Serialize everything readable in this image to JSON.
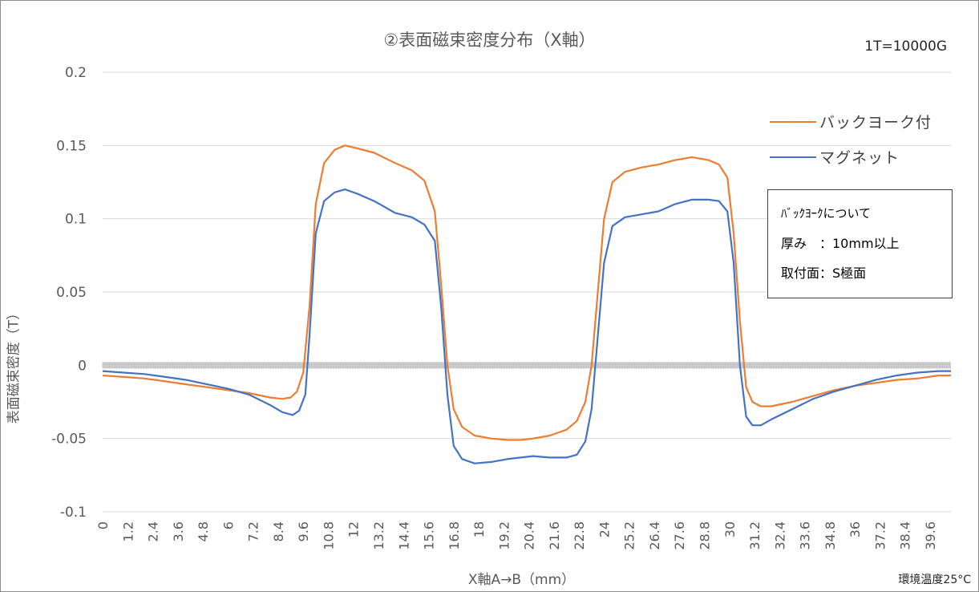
{
  "chart_data": {
    "type": "line",
    "title": "②表面磁束密度分布（X軸）",
    "xlabel": "X軸A→B（mm）",
    "ylabel": "表面磁束密度（T）",
    "ylim": [
      -0.1,
      0.2
    ],
    "yticks": [
      "0.2",
      "0.15",
      "0.1",
      "0.05",
      "0",
      "-0.05",
      "-0.1"
    ],
    "xlim": [
      0,
      40.6
    ],
    "xticks": [
      "0",
      "1.2",
      "2.4",
      "3.6",
      "4.8",
      "6",
      "7.2",
      "8.4",
      "9.6",
      "10.8",
      "12",
      "13.2",
      "14.4",
      "15.6",
      "16.8",
      "18",
      "19.2",
      "20.4",
      "21.6",
      "22.8",
      "24",
      "25.2",
      "26.4",
      "27.6",
      "28.8",
      "30",
      "31.2",
      "32.4",
      "33.6",
      "34.8",
      "36",
      "37.2",
      "38.4",
      "39.6"
    ],
    "grid": true,
    "legend_position": "right",
    "series": [
      {
        "name": "バックヨーク付",
        "color": "#ed7d31",
        "x": [
          0,
          1,
          2,
          3,
          4,
          5,
          6,
          7,
          8,
          8.6,
          9,
          9.3,
          9.6,
          9.9,
          10.2,
          10.6,
          11.1,
          11.6,
          12.2,
          13,
          14,
          14.8,
          15.4,
          15.9,
          16.2,
          16.5,
          16.8,
          17.2,
          17.8,
          18.6,
          19.4,
          20,
          20.6,
          21.4,
          22.2,
          22.7,
          23.1,
          23.4,
          23.7,
          24,
          24.4,
          25,
          25.8,
          26.6,
          27.4,
          28.2,
          29,
          29.5,
          29.9,
          30.2,
          30.5,
          30.8,
          31.1,
          31.5,
          32,
          33,
          34,
          35,
          36,
          37,
          38,
          39,
          40,
          40.6
        ],
        "y": [
          -0.007,
          -0.008,
          -0.009,
          -0.011,
          -0.013,
          -0.015,
          -0.017,
          -0.019,
          -0.022,
          -0.023,
          -0.022,
          -0.018,
          -0.005,
          0.04,
          0.11,
          0.138,
          0.147,
          0.15,
          0.148,
          0.145,
          0.138,
          0.133,
          0.126,
          0.105,
          0.055,
          0.0,
          -0.03,
          -0.042,
          -0.048,
          -0.05,
          -0.051,
          -0.051,
          -0.05,
          -0.048,
          -0.044,
          -0.038,
          -0.025,
          0.0,
          0.05,
          0.1,
          0.125,
          0.132,
          0.135,
          0.137,
          0.14,
          0.142,
          0.14,
          0.137,
          0.128,
          0.09,
          0.03,
          -0.015,
          -0.025,
          -0.028,
          -0.028,
          -0.025,
          -0.021,
          -0.017,
          -0.014,
          -0.012,
          -0.01,
          -0.009,
          -0.007,
          -0.007
        ]
      },
      {
        "name": "マグネット",
        "color": "#4472c4",
        "x": [
          0,
          1,
          2,
          3,
          4,
          5,
          6,
          7,
          8,
          8.6,
          9.1,
          9.4,
          9.7,
          9.9,
          10.2,
          10.6,
          11.1,
          11.6,
          12.2,
          13,
          14,
          14.8,
          15.4,
          15.9,
          16.2,
          16.5,
          16.8,
          17.2,
          17.8,
          18.6,
          19.4,
          20,
          20.6,
          21.4,
          22.2,
          22.7,
          23.1,
          23.4,
          23.7,
          24,
          24.4,
          25,
          25.8,
          26.6,
          27.4,
          28.2,
          29,
          29.5,
          29.9,
          30.2,
          30.5,
          30.8,
          31.1,
          31.5,
          32,
          33,
          34,
          35,
          36,
          37,
          38,
          39,
          40,
          40.6
        ],
        "y": [
          -0.004,
          -0.005,
          -0.006,
          -0.008,
          -0.01,
          -0.013,
          -0.016,
          -0.02,
          -0.027,
          -0.032,
          -0.034,
          -0.031,
          -0.02,
          0.02,
          0.09,
          0.112,
          0.118,
          0.12,
          0.117,
          0.112,
          0.104,
          0.101,
          0.096,
          0.085,
          0.04,
          -0.02,
          -0.055,
          -0.064,
          -0.067,
          -0.066,
          -0.064,
          -0.063,
          -0.062,
          -0.063,
          -0.063,
          -0.061,
          -0.052,
          -0.03,
          0.02,
          0.07,
          0.095,
          0.101,
          0.103,
          0.105,
          0.11,
          0.113,
          0.113,
          0.112,
          0.105,
          0.07,
          0.0,
          -0.035,
          -0.041,
          -0.041,
          -0.037,
          -0.03,
          -0.023,
          -0.018,
          -0.014,
          -0.01,
          -0.007,
          -0.005,
          -0.004,
          -0.004
        ]
      }
    ],
    "annotations": {
      "unit_note": "1T=10000G",
      "ambient": "環境温度25°C"
    },
    "note_box": {
      "lines": [
        "ﾊﾞｯｸﾖｰｸについて",
        "厚み　：10mm以上",
        "取付面：S極面"
      ]
    }
  }
}
